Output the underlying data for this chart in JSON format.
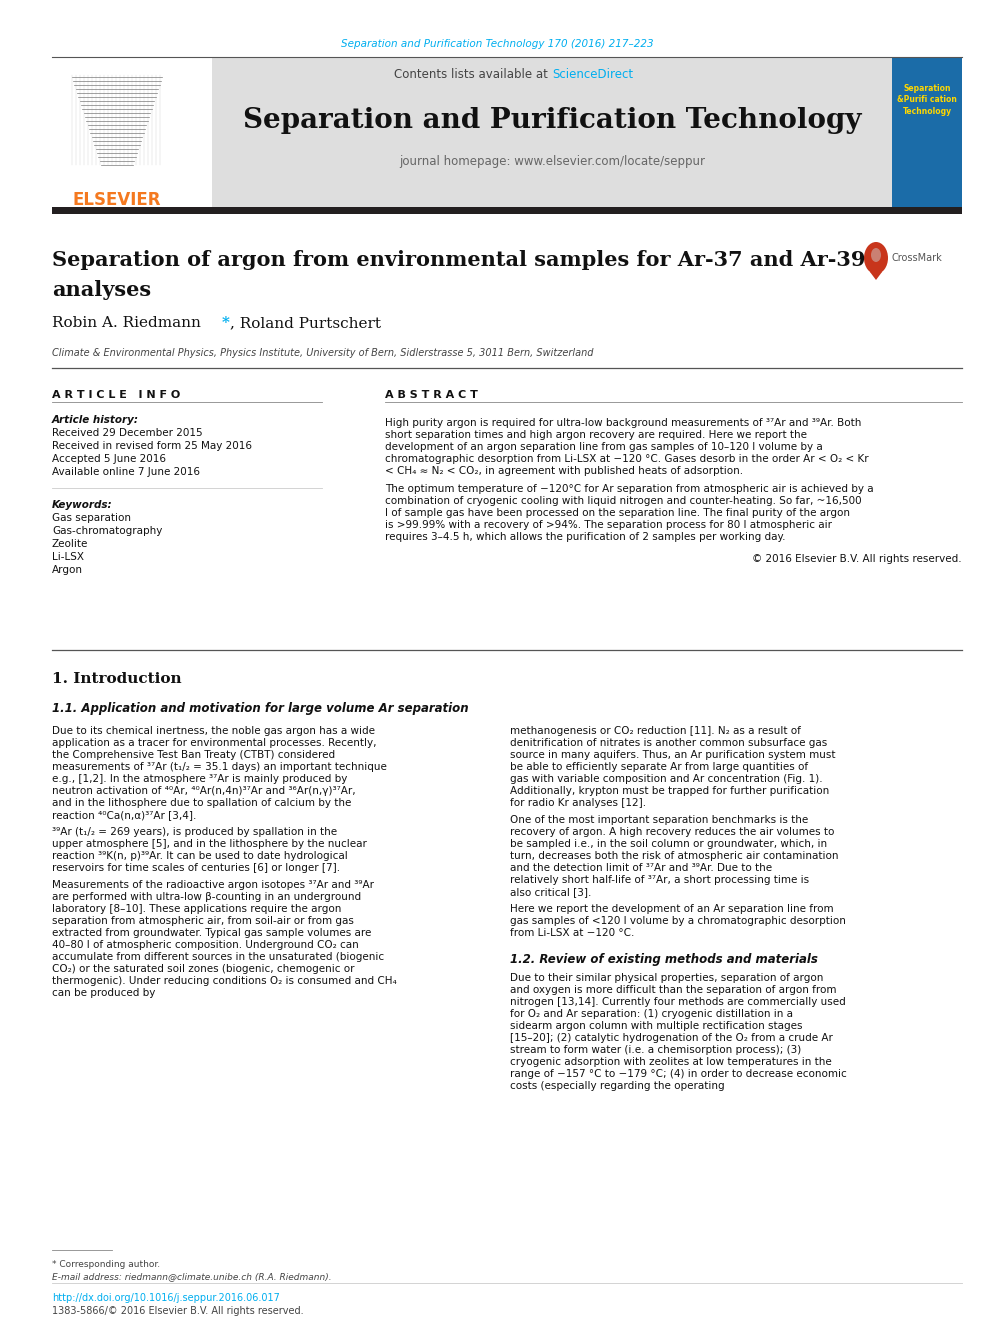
{
  "journal_ref_text": "Separation and Purification Technology 170 (2016) 217–223",
  "journal_ref_color": "#00AEEF",
  "sciencedirect_color": "#00AEEF",
  "elsevier_color": "#F47920",
  "header_bg": "#E0E0E0",
  "thick_bar_color": "#231F20",
  "paper_title_line1": "Separation of argon from environmental samples for Ar-37 and Ar-39",
  "paper_title_line2": "analyses",
  "affiliation": "Climate & Environmental Physics, Physics Institute, University of Bern, Sidlerstrasse 5, 3011 Bern, Switzerland",
  "article_info_header": "A R T I C L E   I N F O",
  "abstract_header": "A B S T R A C T",
  "article_history_label": "Article history:",
  "article_history_lines": [
    "Received 29 December 2015",
    "Received in revised form 25 May 2016",
    "Accepted 5 June 2016",
    "Available online 7 June 2016"
  ],
  "keywords_label": "Keywords:",
  "keywords_lines": [
    "Gas separation",
    "Gas-chromatography",
    "Zeolite",
    "Li-LSX",
    "Argon"
  ],
  "abstract_para1": "High purity argon is required for ultra-low background measurements of ³⁷Ar and ³⁹Ar. Both short separation times and high argon recovery are required. Here we report the development of an argon separation line from gas samples of 10–120 l volume by a chromatographic desorption from Li-LSX at −120 °C. Gases desorb in the order Ar < O₂ < Kr < CH₄ ≈ N₂ < CO₂, in agreement with published heats of adsorption.",
  "abstract_para2": "   The optimum temperature of −120°C for Ar separation from atmospheric air is achieved by a combination of cryogenic cooling with liquid nitrogen and counter-heating. So far, ~16,500 l of sample gas have been processed on the separation line. The final purity of the argon is >99.99% with a recovery of >94%. The separation process for 80 l atmospheric air requires 3–4.5 h, which allows the purification of 2 samples per working day.",
  "copyright_text": "© 2016 Elsevier B.V. All rights reserved.",
  "section1_title": "1. Introduction",
  "subsection1_title": "1.1. Application and motivation for large volume Ar separation",
  "body_left_paras": [
    "   Due to its chemical inertness, the noble gas argon has a wide application as a tracer for environmental processes. Recently, the Comprehensive Test Ban Treaty (CTBT) considered measurements of ³⁷Ar (t₁/₂ = 35.1 days) an important technique e.g., [1,2]. In the atmosphere ³⁷Ar is mainly produced by neutron activation of ⁴⁰Ar, ⁴⁰Ar(n,4n)³⁷Ar and ³⁶Ar(n,γ)³⁷Ar, and in the lithosphere due to spallation of calcium by the reaction ⁴⁰Ca(n,α)³⁷Ar [3,4].",
    "   ³⁹Ar (t₁/₂ = 269 years), is produced by spallation in the upper atmosphere [5], and in the lithosphere by the nuclear reaction ³⁹K(n, p)³⁹Ar. It can be used to date hydrological reservoirs for time scales of centuries [6] or longer [7].",
    "   Measurements of the radioactive argon isotopes ³⁷Ar and ³⁹Ar are performed with ultra-low β-counting in an underground laboratory [8–10]. These applications require the argon separation from atmospheric air, from soil-air or from gas extracted from groundwater. Typical gas sample volumes are 40–80 l of atmospheric composition. Underground CO₂ can accumulate from different sources in the unsaturated (biogenic CO₂) or the saturated soil zones (biogenic, chemogenic or thermogenic). Under reducing conditions O₂ is consumed and CH₄ can be produced by"
  ],
  "body_right_paras": [
    "methanogenesis or CO₂ reduction [11]. N₂ as a result of denitrification of nitrates is another common subsurface gas source in many aquifers. Thus, an Ar purification system must be able to efficiently separate Ar from large quantities of gas with variable composition and Ar concentration (Fig. 1). Additionally, krypton must be trapped for further purification for radio Kr analyses [12].",
    "   One of the most important separation benchmarks is the recovery of argon. A high recovery reduces the air volumes to be sampled i.e., in the soil column or groundwater, which, in turn, decreases both the risk of atmospheric air contamination and the detection limit of ³⁷Ar and ³⁹Ar. Due to the relatively short half-life of ³⁷Ar, a short processing time is also critical [3].",
    "   Here we report the development of an Ar separation line from gas samples of <120 l volume by a chromatographic desorption from Li-LSX at −120 °C."
  ],
  "subsection2_title": "1.2. Review of existing methods and materials",
  "body_right_para2": "   Due to their similar physical properties, separation of argon and oxygen is more difficult than the separation of argon from nitrogen [13,14]. Currently four methods are commercially used for O₂ and Ar separation: (1) cryogenic distillation in a sidearm argon column with multiple rectification stages [15–20]; (2) catalytic hydrogenation of the O₂ from a crude Ar stream to form water (i.e. a chemisorption process); (3) cryogenic adsorption with zeolites at low temperatures in the range of −157 °C to −179 °C; (4) in order to decrease economic costs (especially regarding the operating",
  "footnote_label": "* Corresponding author.",
  "footnote_email": "E-mail address: riedmann@climate.unibe.ch (R.A. Riedmann).",
  "footer_doi": "http://dx.doi.org/10.1016/j.seppur.2016.06.017",
  "footer_issn": "1383-5866/© 2016 Elsevier B.V. All rights reserved.",
  "bg_color": "#FFFFFF",
  "text_color": "#231F20",
  "link_color": "#00AEEF"
}
